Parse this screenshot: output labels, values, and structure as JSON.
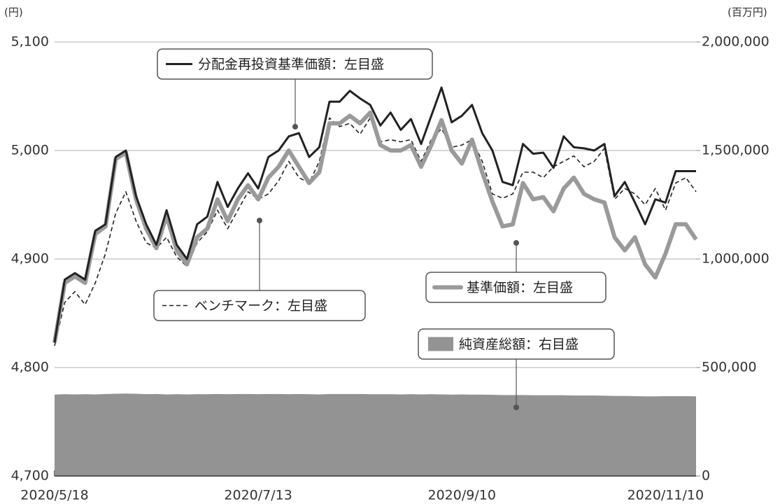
{
  "chart_data": {
    "type": "line",
    "y_unit": "(円)",
    "y2_unit": "(百万円)",
    "categories": [
      "2020/5/18",
      null,
      null,
      null,
      null,
      null,
      null,
      null,
      null,
      null,
      null,
      null,
      null,
      null,
      null,
      null,
      null,
      null,
      null,
      null,
      "2020/7/13",
      null,
      null,
      null,
      null,
      null,
      null,
      null,
      null,
      null,
      null,
      null,
      null,
      null,
      null,
      null,
      null,
      null,
      null,
      null,
      "2020/9/10",
      null,
      null,
      null,
      null,
      null,
      null,
      null,
      null,
      null,
      null,
      null,
      null,
      null,
      null,
      null,
      null,
      null,
      null,
      null,
      "2020/11/10",
      null,
      null,
      null
    ],
    "ylim": [
      4700,
      5100
    ],
    "yticks": [
      {
        "value": 4700,
        "label": "4,700"
      },
      {
        "value": 4800,
        "label": "4,800"
      },
      {
        "value": 4900,
        "label": "4,900"
      },
      {
        "value": 5000,
        "label": "5,000"
      },
      {
        "value": 5100,
        "label": "5,100"
      }
    ],
    "y2lim": [
      0,
      2000000
    ],
    "y2ticks": [
      0,
      {
        "value": 500000,
        "label": "500,000"
      },
      {
        "value": 1000000,
        "label": "1,000,000"
      },
      {
        "value": 1500000,
        "label": "1,500,000"
      },
      {
        "value": 2000000,
        "label": "2,000,000"
      }
    ],
    "grid": true,
    "series": [
      {
        "name": "純資産総額：右目盛",
        "color": "#939393",
        "axis": "y2",
        "kind": "area",
        "values": [
          375000,
          377000,
          376000,
          377000,
          376000,
          378000,
          379000,
          380000,
          379000,
          377000,
          378000,
          376000,
          377000,
          376000,
          377000,
          377000,
          378000,
          377000,
          378000,
          378000,
          377000,
          378000,
          378000,
          377000,
          378000,
          377000,
          376000,
          378000,
          378000,
          378000,
          378000,
          377000,
          377000,
          377000,
          376000,
          377000,
          376000,
          377000,
          376000,
          375000,
          376000,
          375000,
          375000,
          374000,
          373000,
          373000,
          373000,
          372000,
          372000,
          372000,
          372000,
          371000,
          371000,
          371000,
          370000,
          369000,
          369000,
          368000,
          367000,
          367000,
          368000,
          368000,
          368000,
          367000
        ]
      },
      {
        "name": "ベンチマーク：左目盛",
        "color": "#222222",
        "kind": "line",
        "line_style": "dashed",
        "width": 1.6,
        "values": [
          4820,
          4860,
          4870,
          4858,
          4878,
          4905,
          4942,
          4962,
          4935,
          4915,
          4910,
          4920,
          4902,
          4893,
          4915,
          4925,
          4945,
          4928,
          4945,
          4962,
          4955,
          4960,
          4972,
          4990,
          4975,
          4970,
          4990,
          5030,
          5022,
          5025,
          5015,
          5030,
          5008,
          5010,
          5008,
          5010,
          4990,
          5010,
          5020,
          5003,
          5005,
          5010,
          4990,
          4960,
          4956,
          4960,
          4980,
          4980,
          4975,
          4985,
          4990,
          4995,
          4985,
          4990,
          5002,
          4955,
          4965,
          4960,
          4950,
          4965,
          4945,
          4970,
          4975,
          4962
        ]
      },
      {
        "name": "基準価額：左目盛",
        "color": "#9a9a9a",
        "kind": "line",
        "line_style": "solid",
        "width": 6,
        "values": [
          4823,
          4878,
          4884,
          4878,
          4923,
          4930,
          4992,
          4998,
          4955,
          4928,
          4910,
          4940,
          4908,
          4895,
          4920,
          4928,
          4955,
          4935,
          4955,
          4968,
          4955,
          4975,
          4985,
          5000,
          4985,
          4970,
          4980,
          5025,
          5025,
          5032,
          5025,
          5035,
          5005,
          5000,
          5000,
          5005,
          4985,
          5005,
          5028,
          5000,
          4988,
          5010,
          4980,
          4953,
          4930,
          4932,
          4970,
          4955,
          4957,
          4944,
          4965,
          4975,
          4960,
          4955,
          4952,
          4920,
          4908,
          4920,
          4895,
          4883,
          4905,
          4932,
          4932,
          4918
        ]
      },
      {
        "name": "分配金再投資基準価額：左目盛",
        "color": "#222222",
        "kind": "line",
        "line_style": "solid",
        "width": 3,
        "values": [
          4823,
          4881,
          4887,
          4881,
          4926,
          4932,
          4994,
          5000,
          4958,
          4932,
          4913,
          4945,
          4913,
          4900,
          4932,
          4939,
          4971,
          4948,
          4965,
          4979,
          4965,
          4994,
          5000,
          5013,
          5016,
          4994,
          5003,
          5045,
          5045,
          5055,
          5048,
          5042,
          5023,
          5035,
          5019,
          5029,
          5006,
          5032,
          5058,
          5026,
          5032,
          5042,
          5016,
          5000,
          4971,
          4968,
          5006,
          4997,
          4998,
          4984,
          5013,
          5003,
          5002,
          5000,
          5006,
          4958,
          4971,
          4952,
          4932,
          4955,
          4952,
          4981,
          4981,
          4981
        ]
      }
    ]
  }
}
